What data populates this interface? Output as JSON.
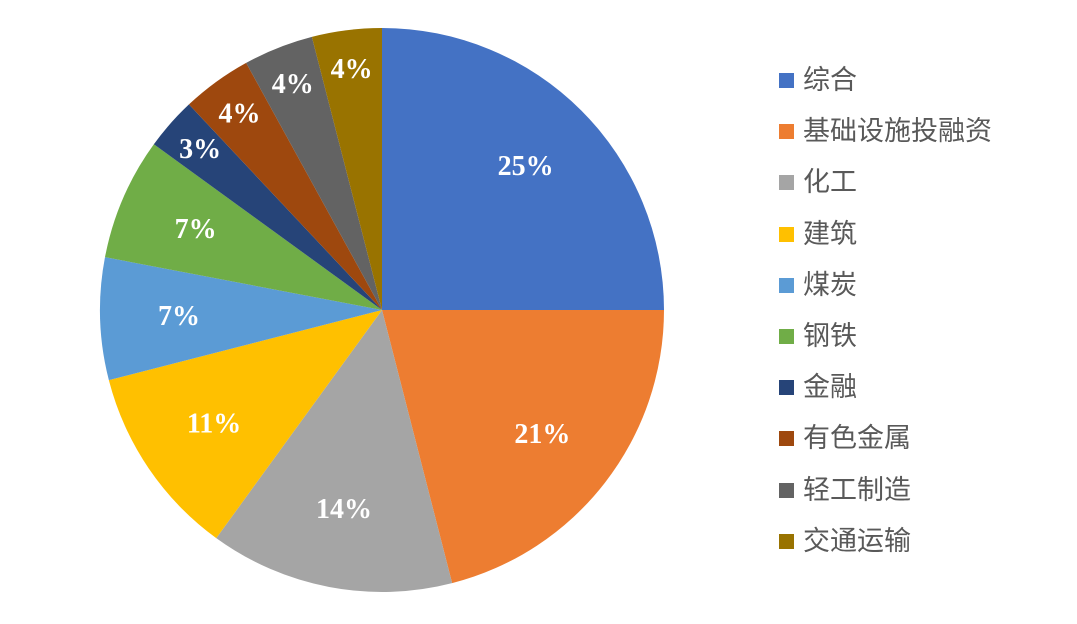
{
  "chart_data": {
    "type": "pie",
    "categories": [
      "综合",
      "基础设施投融资",
      "化工",
      "建筑",
      "煤炭",
      "钢铁",
      "金融",
      "有色金属",
      "轻工制造",
      "交通运输"
    ],
    "values": [
      25,
      21,
      14,
      11,
      7,
      7,
      3,
      4,
      4,
      4
    ],
    "data_labels": [
      "25%",
      "21%",
      "14%",
      "11%",
      "7%",
      "7%",
      "3%",
      "4%",
      "4%",
      "4%"
    ],
    "colors": [
      "#4472C4",
      "#ED7D31",
      "#A5A5A5",
      "#FFC000",
      "#5B9BD5",
      "#70AD47",
      "#264478",
      "#9E480E",
      "#636363",
      "#997300"
    ],
    "legend_position": "right",
    "start_angle": "12 o'clock",
    "direction": "clockwise"
  }
}
